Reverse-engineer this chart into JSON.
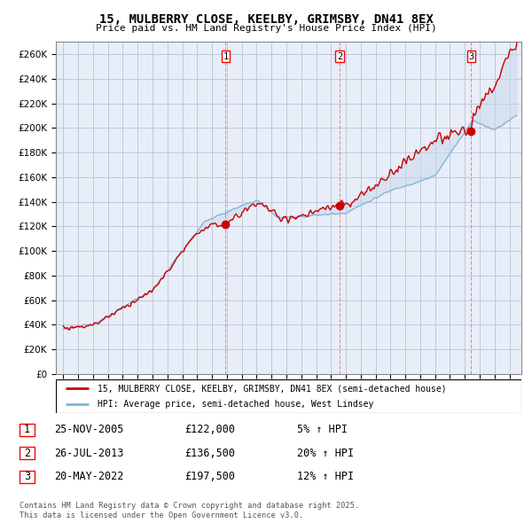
{
  "title": "15, MULBERRY CLOSE, KEELBY, GRIMSBY, DN41 8EX",
  "subtitle": "Price paid vs. HM Land Registry's House Price Index (HPI)",
  "ytick_vals": [
    0,
    20000,
    40000,
    60000,
    80000,
    100000,
    120000,
    140000,
    160000,
    180000,
    200000,
    220000,
    240000,
    260000
  ],
  "ylim": [
    0,
    270000
  ],
  "legend_line1": "15, MULBERRY CLOSE, KEELBY, GRIMSBY, DN41 8EX (semi-detached house)",
  "legend_line2": "HPI: Average price, semi-detached house, West Lindsey",
  "sale1_date": "25-NOV-2005",
  "sale1_price": "£122,000",
  "sale1_hpi": "5% ↑ HPI",
  "sale2_date": "26-JUL-2013",
  "sale2_price": "£136,500",
  "sale2_hpi": "20% ↑ HPI",
  "sale3_date": "20-MAY-2022",
  "sale3_price": "£197,500",
  "sale3_hpi": "12% ↑ HPI",
  "footer": "Contains HM Land Registry data © Crown copyright and database right 2025.\nThis data is licensed under the Open Government Licence v3.0.",
  "hpi_color": "#7ab4d8",
  "price_color": "#cc0000",
  "vline_color": "#dd8888",
  "background_color": "#e8eef8",
  "fill_color": "#c8d8ec",
  "grid_color": "#b0b8d0"
}
